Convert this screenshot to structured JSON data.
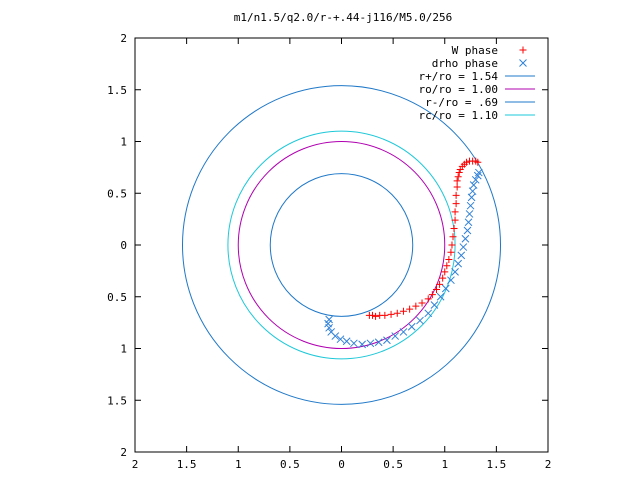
{
  "chart_data": {
    "type": "scatter",
    "title": "m1/n1.5/q2.0/r-+.44-j116/M5.0/256",
    "xlabel": "",
    "ylabel": "",
    "xlim": [
      -2,
      2
    ],
    "ylim": [
      -2,
      2
    ],
    "x_tick_labels": [
      "2",
      "1.5",
      "1",
      "0.5",
      "0",
      "0.5",
      "1",
      "1.5",
      "2"
    ],
    "y_tick_labels": [
      "2",
      "1.5",
      "1",
      "0.5",
      "0",
      "0.5",
      "1",
      "1.5",
      "2"
    ],
    "grid": false,
    "legend_position": "top-right",
    "series": [
      {
        "name": "W phase",
        "marker": "+",
        "color": "#ff0000",
        "points": [
          [
            0.27,
            -0.68
          ],
          [
            0.3,
            -0.68
          ],
          [
            0.33,
            -0.69
          ],
          [
            0.37,
            -0.68
          ],
          [
            0.42,
            -0.68
          ],
          [
            0.48,
            -0.67
          ],
          [
            0.54,
            -0.66
          ],
          [
            0.6,
            -0.64
          ],
          [
            0.66,
            -0.62
          ],
          [
            0.72,
            -0.59
          ],
          [
            0.78,
            -0.56
          ],
          [
            0.84,
            -0.52
          ],
          [
            0.88,
            -0.48
          ],
          [
            0.92,
            -0.43
          ],
          [
            0.95,
            -0.38
          ],
          [
            0.98,
            -0.32
          ],
          [
            1.0,
            -0.26
          ],
          [
            1.02,
            -0.2
          ],
          [
            1.04,
            -0.14
          ],
          [
            1.06,
            -0.07
          ],
          [
            1.07,
            0.0
          ],
          [
            1.08,
            0.08
          ],
          [
            1.09,
            0.16
          ],
          [
            1.1,
            0.24
          ],
          [
            1.1,
            0.32
          ],
          [
            1.11,
            0.4
          ],
          [
            1.11,
            0.48
          ],
          [
            1.12,
            0.56
          ],
          [
            1.12,
            0.62
          ],
          [
            1.13,
            0.66
          ],
          [
            1.14,
            0.7
          ],
          [
            1.15,
            0.73
          ],
          [
            1.17,
            0.76
          ],
          [
            1.19,
            0.78
          ],
          [
            1.21,
            0.8
          ],
          [
            1.24,
            0.81
          ],
          [
            1.27,
            0.81
          ],
          [
            1.3,
            0.81
          ],
          [
            1.32,
            0.8
          ]
        ]
      },
      {
        "name": "drho phase",
        "marker": "x",
        "color": "#2f80d8",
        "points": [
          [
            -0.12,
            -0.72
          ],
          [
            -0.13,
            -0.76
          ],
          [
            -0.12,
            -0.8
          ],
          [
            -0.1,
            -0.84
          ],
          [
            -0.06,
            -0.88
          ],
          [
            -0.01,
            -0.91
          ],
          [
            0.05,
            -0.93
          ],
          [
            0.12,
            -0.95
          ],
          [
            0.2,
            -0.96
          ],
          [
            0.28,
            -0.95
          ],
          [
            0.36,
            -0.94
          ],
          [
            0.44,
            -0.92
          ],
          [
            0.52,
            -0.88
          ],
          [
            0.6,
            -0.84
          ],
          [
            0.68,
            -0.79
          ],
          [
            0.76,
            -0.73
          ],
          [
            0.84,
            -0.66
          ],
          [
            0.9,
            -0.58
          ],
          [
            0.96,
            -0.5
          ],
          [
            1.01,
            -0.42
          ],
          [
            1.06,
            -0.34
          ],
          [
            1.1,
            -0.26
          ],
          [
            1.13,
            -0.18
          ],
          [
            1.16,
            -0.1
          ],
          [
            1.18,
            -0.02
          ],
          [
            1.2,
            0.06
          ],
          [
            1.22,
            0.14
          ],
          [
            1.23,
            0.22
          ],
          [
            1.24,
            0.3
          ],
          [
            1.25,
            0.38
          ],
          [
            1.26,
            0.46
          ],
          [
            1.27,
            0.52
          ],
          [
            1.28,
            0.58
          ],
          [
            1.3,
            0.63
          ],
          [
            1.32,
            0.67
          ],
          [
            1.33,
            0.7
          ]
        ]
      },
      {
        "name": "r+/ro = 1.54",
        "kind": "circle",
        "radius": 1.54,
        "color": "#1f78c8"
      },
      {
        "name": "ro/ro = 1.00",
        "kind": "circle",
        "radius": 1.0,
        "color": "#b000b0"
      },
      {
        "name": "r-/ro = .69",
        "kind": "circle",
        "radius": 0.69,
        "color": "#1f78c8"
      },
      {
        "name": "rc/ro = 1.10",
        "kind": "circle",
        "radius": 1.1,
        "color": "#1ec8d8"
      }
    ]
  }
}
